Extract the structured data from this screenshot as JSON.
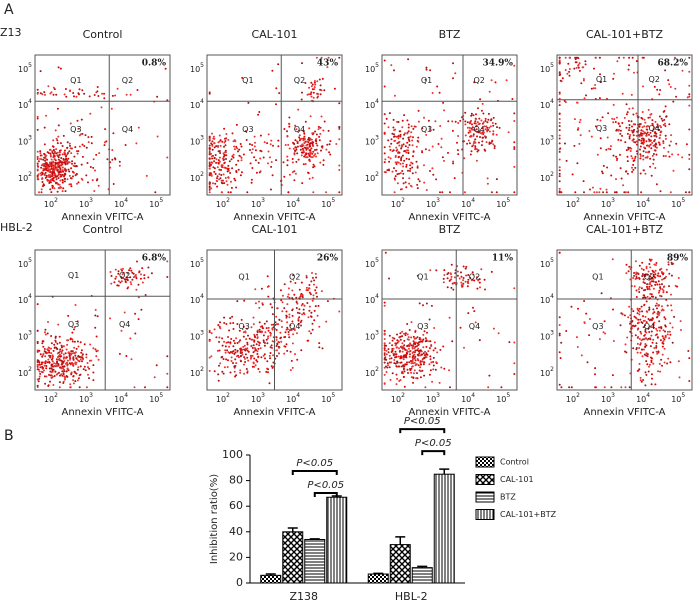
{
  "panel_a": {
    "label": "A",
    "x_label": "Annexin VFITC-A",
    "tick_base": "10",
    "tick_exponents": [
      "2",
      "3",
      "4",
      "5"
    ],
    "quadrant_labels": [
      "Q1",
      "Q2",
      "Q3",
      "Q4"
    ],
    "rows": [
      {
        "cell_line": "Z13",
        "plots": [
          {
            "title": "Control",
            "percent": "0.8%"
          },
          {
            "title": "CAL-101",
            "percent": "43%"
          },
          {
            "title": "BTZ",
            "percent": "34.9%"
          },
          {
            "title": "CAL-101+BTZ",
            "percent": "68.2%"
          }
        ]
      },
      {
        "cell_line": "HBL-2",
        "plots": [
          {
            "title": "Control",
            "percent": "6.8%"
          },
          {
            "title": "CAL-101",
            "percent": "26%"
          },
          {
            "title": "BTZ",
            "percent": "11%"
          },
          {
            "title": "CAL-101+BTZ",
            "percent": "89%"
          }
        ]
      }
    ]
  },
  "chart_data": {
    "type": "bar",
    "panel_label": "B",
    "y_label": "Inhibition ratio(%)",
    "categories": [
      "Z138",
      "HBL-2"
    ],
    "series": [
      {
        "name": "Control",
        "color": "#000000",
        "pattern": "checker",
        "values": [
          6,
          7
        ],
        "errors": [
          1,
          0.5
        ]
      },
      {
        "name": "CAL-101",
        "color": "#000000",
        "pattern": "diamond",
        "values": [
          40,
          30
        ],
        "errors": [
          3,
          6
        ]
      },
      {
        "name": "BTZ",
        "color": "#000000",
        "pattern": "horizontal",
        "values": [
          34,
          12
        ],
        "errors": [
          0.5,
          1
        ]
      },
      {
        "name": "CAL-101+BTZ",
        "color": "#000000",
        "pattern": "vertical",
        "values": [
          67,
          85
        ],
        "errors": [
          1,
          4
        ]
      }
    ],
    "annotations": [
      "P<0.05",
      "P<0.05",
      "P<0.05",
      "P<0.05"
    ],
    "ylim": [
      0,
      100
    ],
    "yticks": [
      0,
      20,
      40,
      60,
      80,
      100
    ],
    "legend": "right"
  }
}
